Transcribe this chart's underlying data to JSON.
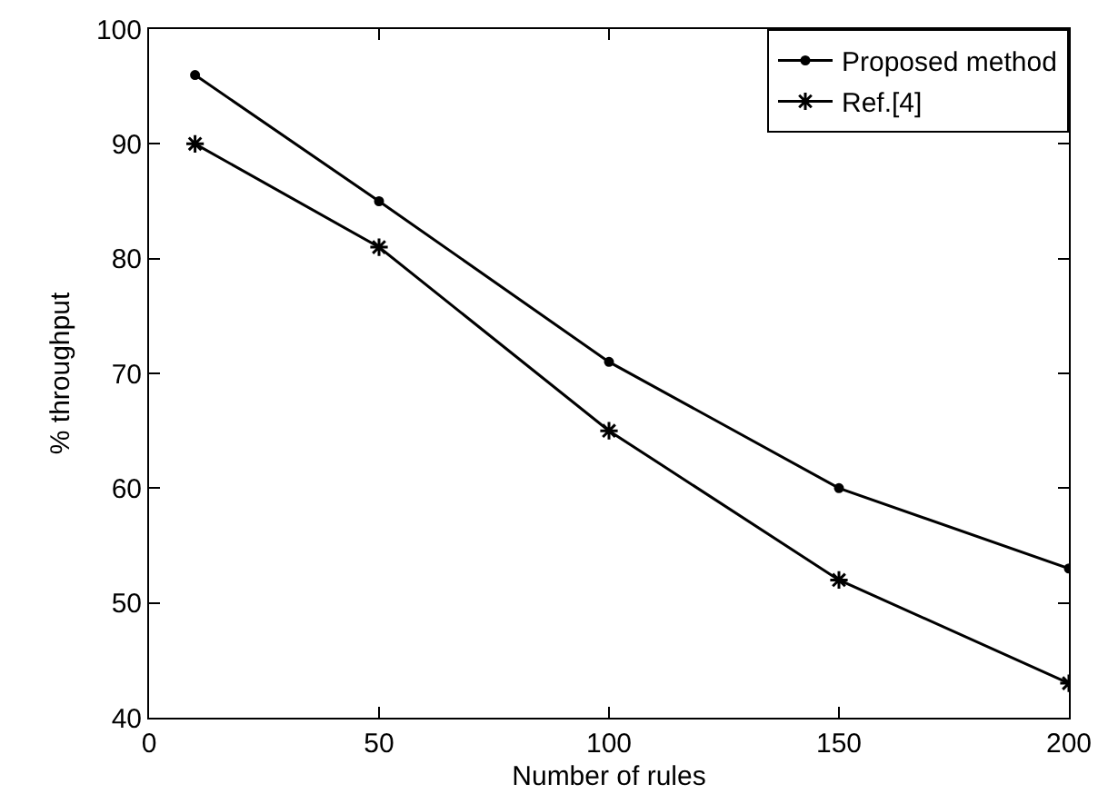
{
  "chart_data": {
    "type": "line",
    "xlabel": "Number of rules",
    "ylabel": "% throughput",
    "x": [
      10,
      50,
      100,
      150,
      200
    ],
    "series": [
      {
        "name": "Proposed method",
        "color": "#000000",
        "values": [
          96,
          85,
          71,
          60,
          53
        ],
        "marker": "circle"
      },
      {
        "name": "Ref.[4]",
        "color": "#000000",
        "values": [
          90,
          81,
          65,
          52,
          43
        ],
        "marker": "cross"
      }
    ],
    "xlim": [
      0,
      200
    ],
    "xticks": [
      0,
      50,
      100,
      150,
      200
    ],
    "ylim": [
      40,
      100
    ],
    "yticks": [
      40,
      50,
      60,
      70,
      80,
      90,
      100
    ],
    "grid": false,
    "legend": "top right",
    "line_style": "solid"
  }
}
